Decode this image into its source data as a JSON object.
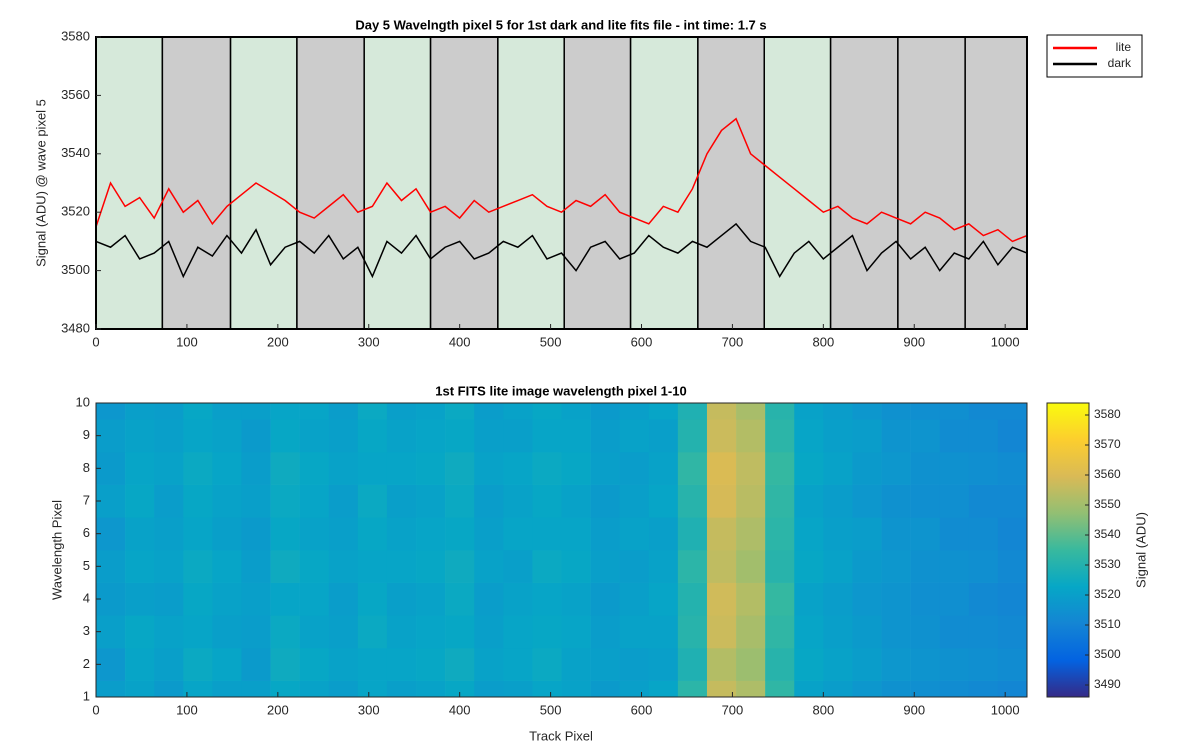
{
  "chart_data": [
    {
      "type": "line",
      "title": "Day 5 Wavelngth pixel 5 for 1st dark and lite fits file - int time: 1.7 s",
      "y_label": "Signal (ADU) @ wave pixel 5",
      "xlim": [
        0,
        1024
      ],
      "ylim": [
        3480,
        3580
      ],
      "xticks": [
        0,
        100,
        200,
        300,
        400,
        500,
        600,
        700,
        800,
        900,
        1000
      ],
      "yticks": [
        3480,
        3500,
        3520,
        3540,
        3560,
        3580
      ],
      "legend": "northeastoutside",
      "regions": [
        {
          "start": 0,
          "end": 73,
          "color": "#d6e9da"
        },
        {
          "start": 73,
          "end": 148,
          "color": "#cccccc"
        },
        {
          "start": 148,
          "end": 221,
          "color": "#d6e9da"
        },
        {
          "start": 221,
          "end": 295,
          "color": "#cccccc"
        },
        {
          "start": 295,
          "end": 368,
          "color": "#d6e9da"
        },
        {
          "start": 368,
          "end": 442,
          "color": "#cccccc"
        },
        {
          "start": 442,
          "end": 515,
          "color": "#d6e9da"
        },
        {
          "start": 515,
          "end": 588,
          "color": "#cccccc"
        },
        {
          "start": 588,
          "end": 662,
          "color": "#d6e9da"
        },
        {
          "start": 662,
          "end": 735,
          "color": "#cccccc"
        },
        {
          "start": 735,
          "end": 808,
          "color": "#d6e9da"
        },
        {
          "start": 808,
          "end": 882,
          "color": "#cccccc"
        },
        {
          "start": 882,
          "end": 956,
          "color": "#cccccc"
        },
        {
          "start": 956,
          "end": 1024,
          "color": "#cccccc"
        }
      ],
      "x": [
        0,
        16,
        32,
        48,
        64,
        80,
        96,
        112,
        128,
        144,
        160,
        176,
        192,
        208,
        224,
        240,
        256,
        272,
        288,
        304,
        320,
        336,
        352,
        368,
        384,
        400,
        416,
        432,
        448,
        464,
        480,
        496,
        512,
        528,
        544,
        560,
        576,
        592,
        608,
        624,
        640,
        656,
        672,
        688,
        704,
        720,
        736,
        752,
        768,
        784,
        800,
        816,
        832,
        848,
        864,
        880,
        896,
        912,
        928,
        944,
        960,
        976,
        992,
        1008,
        1024
      ],
      "series": [
        {
          "name": "lite",
          "color": "#ff0000",
          "values": [
            3515,
            3530,
            3522,
            3525,
            3518,
            3528,
            3520,
            3524,
            3516,
            3522,
            3526,
            3530,
            3527,
            3524,
            3520,
            3518,
            3522,
            3526,
            3520,
            3522,
            3530,
            3524,
            3528,
            3520,
            3522,
            3518,
            3524,
            3520,
            3522,
            3524,
            3526,
            3522,
            3520,
            3524,
            3522,
            3526,
            3520,
            3518,
            3516,
            3522,
            3520,
            3528,
            3540,
            3548,
            3552,
            3540,
            3536,
            3532,
            3528,
            3524,
            3520,
            3522,
            3518,
            3516,
            3520,
            3518,
            3516,
            3520,
            3518,
            3514,
            3516,
            3512,
            3514,
            3510,
            3512
          ]
        },
        {
          "name": "dark",
          "color": "#000000",
          "values": [
            3510,
            3508,
            3512,
            3504,
            3506,
            3510,
            3498,
            3508,
            3505,
            3512,
            3506,
            3514,
            3502,
            3508,
            3510,
            3506,
            3512,
            3504,
            3508,
            3498,
            3510,
            3506,
            3512,
            3504,
            3508,
            3510,
            3504,
            3506,
            3510,
            3508,
            3512,
            3504,
            3506,
            3500,
            3508,
            3510,
            3504,
            3506,
            3512,
            3508,
            3506,
            3510,
            3508,
            3512,
            3516,
            3510,
            3508,
            3498,
            3506,
            3510,
            3504,
            3508,
            3512,
            3500,
            3506,
            3510,
            3504,
            3508,
            3500,
            3506,
            3504,
            3510,
            3502,
            3508,
            3506
          ]
        }
      ]
    },
    {
      "type": "heatmap",
      "title": "1st FITS lite image wavelength pixel 1-10",
      "x_label": "Track Pixel",
      "y_label": "Wavelength Pixel",
      "xlim": [
        0,
        1024
      ],
      "ylim": [
        1,
        10
      ],
      "xticks": [
        0,
        100,
        200,
        300,
        400,
        500,
        600,
        700,
        800,
        900,
        1000
      ],
      "yticks": [
        1,
        2,
        3,
        4,
        5,
        6,
        7,
        8,
        9,
        10
      ],
      "xbins": [
        0,
        32,
        64,
        96,
        128,
        160,
        192,
        224,
        256,
        288,
        320,
        352,
        384,
        416,
        448,
        480,
        512,
        544,
        576,
        608,
        640,
        672,
        704,
        736,
        768,
        800,
        832,
        864,
        896,
        928,
        960,
        992,
        1024
      ],
      "y": [
        1,
        2,
        3,
        4,
        5,
        6,
        7,
        8,
        9,
        10
      ],
      "z": [
        [
          3519,
          3521,
          3518,
          3522,
          3520,
          3520,
          3523,
          3521,
          3519,
          3522,
          3520,
          3521,
          3523,
          3519,
          3520,
          3522,
          3521,
          3518,
          3520,
          3522,
          3532,
          3556,
          3552,
          3533,
          3521,
          3519,
          3517,
          3515,
          3514,
          3513,
          3512,
          3511
        ],
        [
          3517,
          3522,
          3520,
          3524,
          3522,
          3518,
          3525,
          3523,
          3521,
          3522,
          3522,
          3523,
          3525,
          3521,
          3522,
          3524,
          3521,
          3520,
          3519,
          3520,
          3529,
          3553,
          3549,
          3531,
          3523,
          3521,
          3519,
          3517,
          3516,
          3515,
          3514,
          3513
        ],
        [
          3520,
          3523,
          3521,
          3522,
          3520,
          3519,
          3524,
          3521,
          3520,
          3524,
          3521,
          3522,
          3523,
          3520,
          3522,
          3523,
          3522,
          3519,
          3521,
          3521,
          3531,
          3557,
          3551,
          3533,
          3522,
          3520,
          3518,
          3516,
          3515,
          3513,
          3513,
          3512
        ],
        [
          3518,
          3520,
          3519,
          3523,
          3521,
          3520,
          3522,
          3522,
          3519,
          3523,
          3520,
          3521,
          3524,
          3519,
          3521,
          3522,
          3521,
          3518,
          3520,
          3522,
          3530,
          3558,
          3553,
          3534,
          3521,
          3519,
          3517,
          3516,
          3514,
          3514,
          3512,
          3511
        ],
        [
          3519,
          3522,
          3521,
          3524,
          3522,
          3519,
          3525,
          3523,
          3521,
          3522,
          3522,
          3523,
          3525,
          3521,
          3520,
          3524,
          3523,
          3520,
          3519,
          3521,
          3532,
          3555,
          3550,
          3531,
          3523,
          3521,
          3518,
          3517,
          3515,
          3515,
          3514,
          3512
        ],
        [
          3517,
          3521,
          3520,
          3522,
          3520,
          3518,
          3523,
          3521,
          3520,
          3523,
          3521,
          3522,
          3523,
          3520,
          3522,
          3522,
          3522,
          3519,
          3521,
          3520,
          3529,
          3556,
          3552,
          3532,
          3522,
          3520,
          3519,
          3516,
          3516,
          3513,
          3513,
          3511
        ],
        [
          3520,
          3523,
          3519,
          3523,
          3521,
          3520,
          3524,
          3522,
          3519,
          3524,
          3520,
          3521,
          3524,
          3519,
          3521,
          3523,
          3521,
          3518,
          3520,
          3522,
          3531,
          3559,
          3554,
          3533,
          3521,
          3519,
          3517,
          3515,
          3514,
          3514,
          3512,
          3512
        ],
        [
          3518,
          3522,
          3521,
          3524,
          3522,
          3519,
          3525,
          3523,
          3521,
          3522,
          3522,
          3523,
          3525,
          3521,
          3522,
          3524,
          3523,
          3520,
          3519,
          3521,
          3533,
          3560,
          3555,
          3534,
          3523,
          3521,
          3518,
          3517,
          3515,
          3515,
          3514,
          3513
        ],
        [
          3519,
          3521,
          3520,
          3522,
          3521,
          3518,
          3523,
          3521,
          3520,
          3523,
          3521,
          3522,
          3523,
          3520,
          3520,
          3522,
          3522,
          3519,
          3521,
          3520,
          3530,
          3557,
          3553,
          3532,
          3522,
          3520,
          3519,
          3516,
          3516,
          3513,
          3513,
          3511
        ],
        [
          3517,
          3520,
          3519,
          3523,
          3520,
          3520,
          3522,
          3522,
          3519,
          3524,
          3520,
          3521,
          3524,
          3519,
          3521,
          3523,
          3521,
          3518,
          3520,
          3522,
          3529,
          3556,
          3551,
          3531,
          3521,
          3519,
          3517,
          3515,
          3514,
          3514,
          3512,
          3512
        ]
      ],
      "colormap": [
        "#352a87",
        "#0363e1",
        "#1485d4",
        "#06a7c6",
        "#38b99e",
        "#92bf73",
        "#d9ba56",
        "#fcce2e",
        "#f9fb0e"
      ],
      "colorbar": {
        "label": "Signal (ADU)",
        "lim": [
          3486,
          3584
        ],
        "ticks": [
          3490,
          3500,
          3510,
          3520,
          3530,
          3540,
          3550,
          3560,
          3570,
          3580
        ]
      }
    }
  ]
}
